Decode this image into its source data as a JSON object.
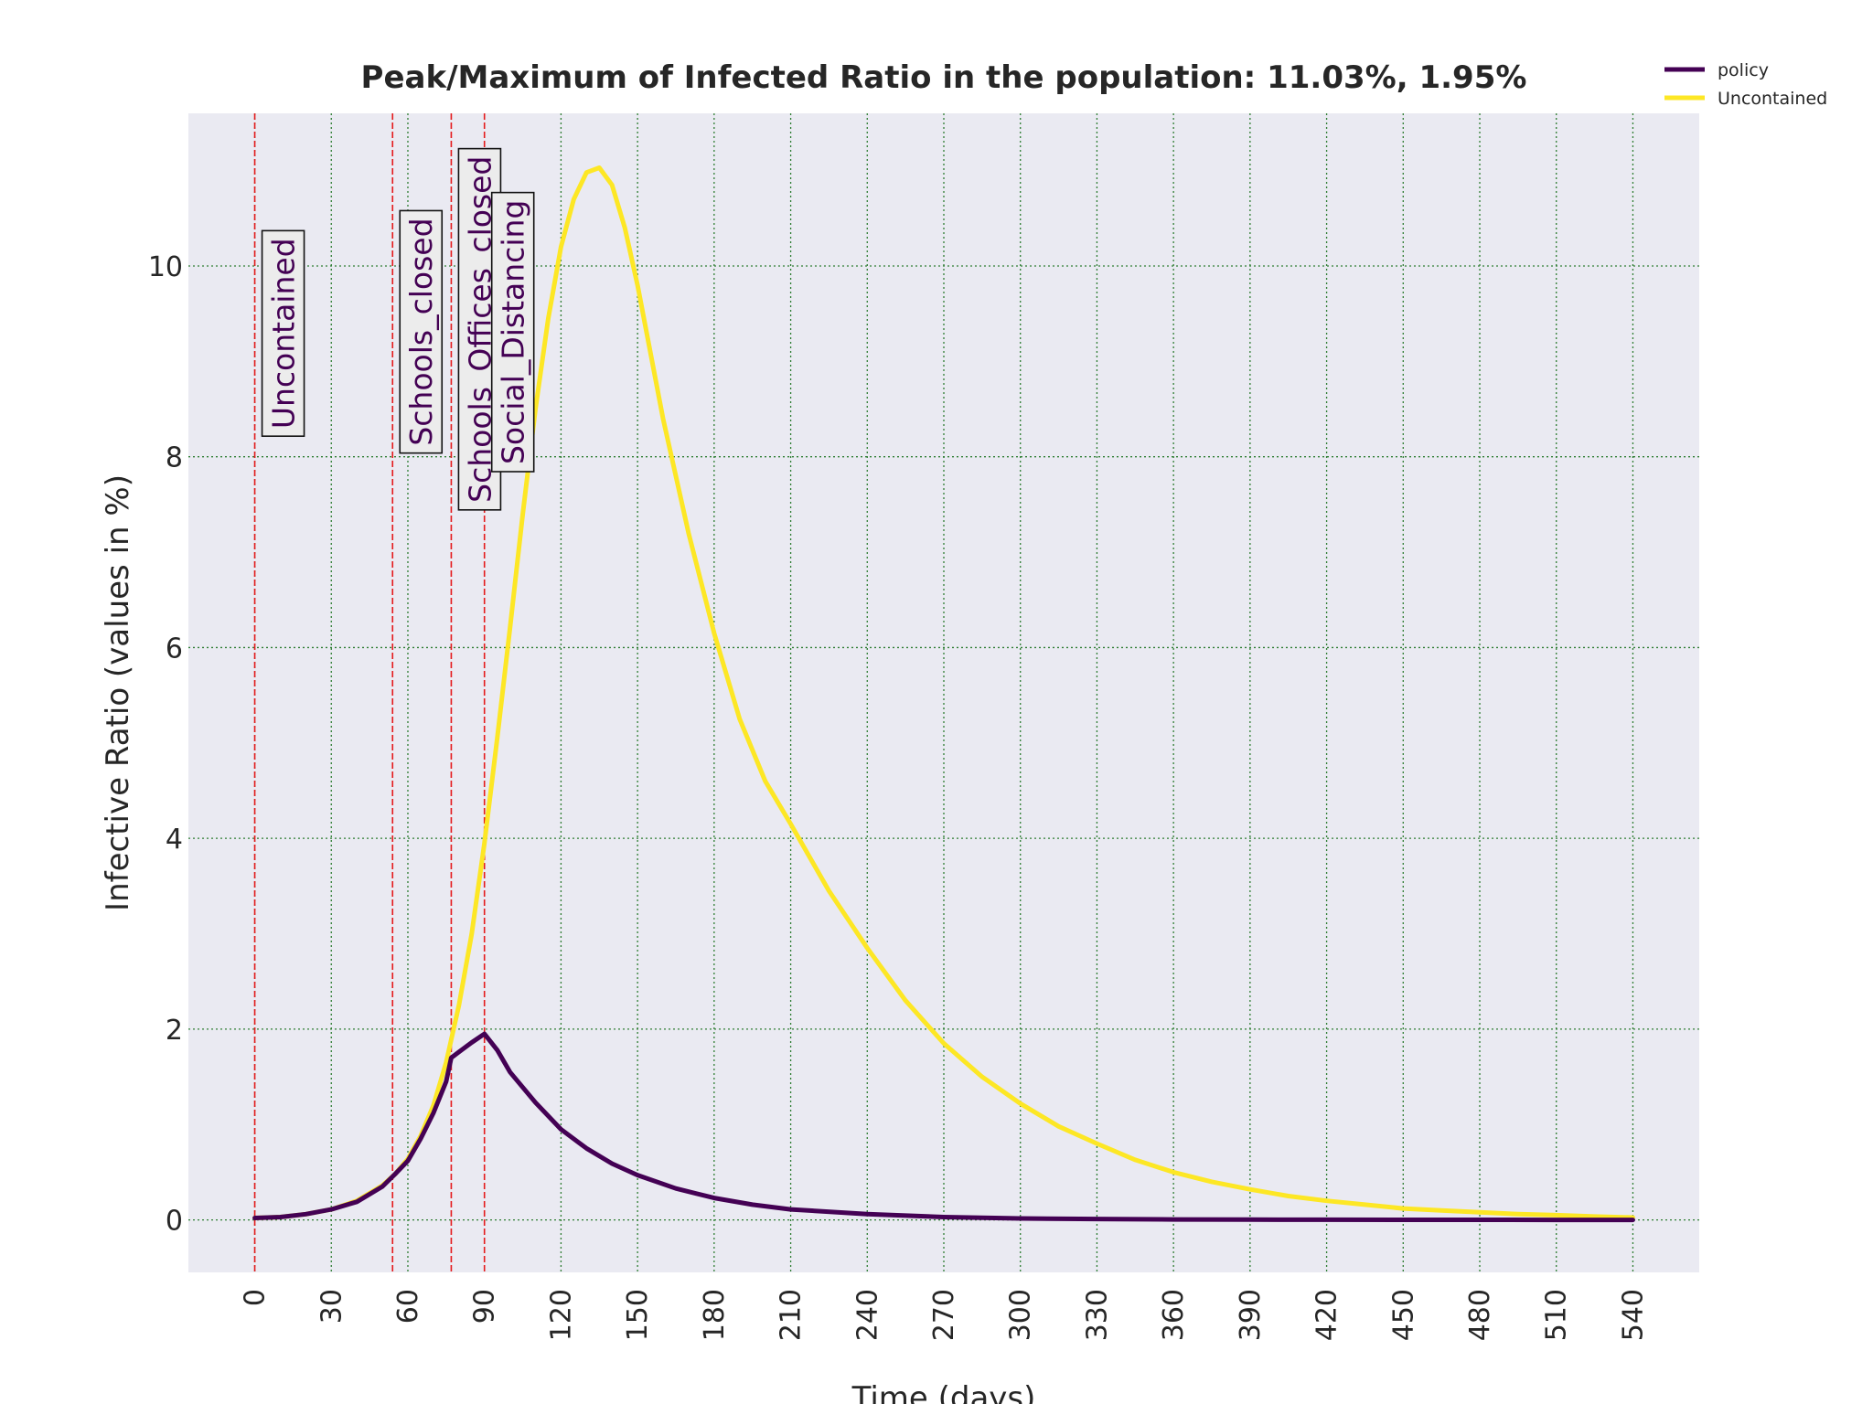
{
  "chart_data": {
    "type": "line",
    "title": "Peak/Maximum of Infected Ratio in the population: 11.03%, 1.95%",
    "xlabel": "Time (days)",
    "ylabel": "Infective Ratio (values in %)",
    "xlim": [
      -26,
      566
    ],
    "ylim": [
      -0.55,
      11.6
    ],
    "xticks": [
      0,
      30,
      60,
      90,
      120,
      150,
      180,
      210,
      240,
      270,
      300,
      330,
      360,
      390,
      420,
      450,
      480,
      510,
      540
    ],
    "yticks": [
      0,
      2,
      4,
      6,
      8,
      10
    ],
    "grid": true,
    "grid_color": "#2e7d32",
    "background": "#eaeaf2",
    "legend_position": "top-right-outside",
    "series": [
      {
        "name": "policy",
        "color": "#440154",
        "x": [
          0,
          10,
          20,
          30,
          40,
          50,
          55,
          60,
          65,
          70,
          75,
          77,
          80,
          85,
          90,
          95,
          100,
          110,
          120,
          130,
          140,
          150,
          165,
          180,
          195,
          210,
          240,
          270,
          300,
          330,
          360,
          390,
          420,
          450,
          480,
          510,
          540
        ],
        "values": [
          0.02,
          0.03,
          0.06,
          0.11,
          0.19,
          0.35,
          0.48,
          0.62,
          0.85,
          1.12,
          1.45,
          1.7,
          1.76,
          1.86,
          1.95,
          1.78,
          1.55,
          1.23,
          0.95,
          0.75,
          0.59,
          0.47,
          0.33,
          0.23,
          0.16,
          0.11,
          0.06,
          0.03,
          0.015,
          0.01,
          0.005,
          0.003,
          0.002,
          0.001,
          0.001,
          0.0,
          0.0
        ]
      },
      {
        "name": "Uncontained",
        "color": "#fde725",
        "x": [
          0,
          10,
          20,
          30,
          40,
          50,
          55,
          60,
          65,
          70,
          75,
          80,
          85,
          90,
          95,
          100,
          105,
          110,
          115,
          120,
          125,
          130,
          135,
          140,
          145,
          150,
          160,
          170,
          180,
          190,
          200,
          210,
          225,
          240,
          255,
          270,
          285,
          300,
          315,
          330,
          345,
          360,
          375,
          390,
          405,
          420,
          435,
          450,
          465,
          480,
          495,
          510,
          525,
          540
        ],
        "values": [
          0.02,
          0.03,
          0.06,
          0.11,
          0.2,
          0.36,
          0.48,
          0.64,
          0.88,
          1.2,
          1.65,
          2.25,
          3.0,
          3.95,
          5.05,
          6.2,
          7.4,
          8.5,
          9.45,
          10.2,
          10.7,
          10.98,
          11.03,
          10.85,
          10.4,
          9.8,
          8.4,
          7.2,
          6.15,
          5.25,
          4.6,
          4.15,
          3.45,
          2.85,
          2.3,
          1.85,
          1.5,
          1.22,
          0.98,
          0.8,
          0.63,
          0.5,
          0.4,
          0.32,
          0.25,
          0.2,
          0.16,
          0.12,
          0.1,
          0.08,
          0.06,
          0.05,
          0.035,
          0.025
        ]
      }
    ],
    "events": [
      {
        "day": 0,
        "label": "Uncontained",
        "label_top_y": 10.37
      },
      {
        "day": 54,
        "label": "Schools_closed",
        "label_top_y": 10.58
      },
      {
        "day": 77,
        "label": "Schools_Offices_closed",
        "label_top_y": 11.23
      },
      {
        "day": 90,
        "label": "Social_Distancing",
        "label_top_y": 10.77
      }
    ],
    "event_line_color": "#e41a1c",
    "event_text_color": "#440154"
  }
}
